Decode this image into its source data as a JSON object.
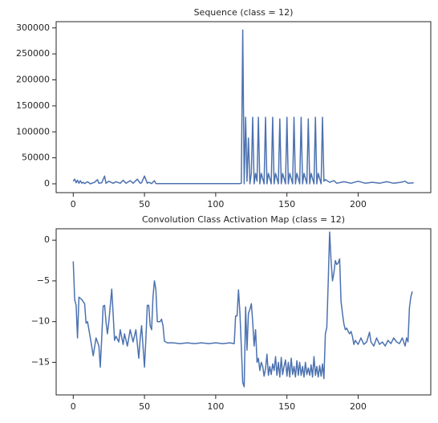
{
  "chart_data": [
    {
      "type": "line",
      "title": "Sequence (class = 12)",
      "x": [
        0,
        1,
        2,
        3,
        4,
        5,
        6,
        7,
        8,
        10,
        12,
        15,
        17,
        18,
        20,
        22,
        23,
        25,
        28,
        30,
        33,
        35,
        37,
        40,
        42,
        45,
        47,
        48,
        50,
        52,
        53,
        55,
        57,
        58,
        60,
        80,
        100,
        117,
        118,
        119,
        120,
        121,
        122,
        123,
        124,
        125,
        126,
        127,
        128,
        129,
        130,
        131,
        132,
        134,
        135,
        136,
        137,
        139,
        140,
        141,
        142,
        144,
        145,
        146,
        147,
        149,
        150,
        151,
        152,
        154,
        155,
        156,
        157,
        159,
        160,
        161,
        162,
        164,
        165,
        166,
        167,
        169,
        170,
        171,
        172,
        174,
        175,
        176,
        177,
        180,
        183,
        185,
        190,
        195,
        200,
        205,
        210,
        215,
        220,
        225,
        230,
        233,
        235,
        239
      ],
      "series": [
        {
          "color": "#4c72b0",
          "values": [
            5000,
            9000,
            2000,
            7000,
            1000,
            6000,
            1000,
            3000,
            500,
            4000,
            0,
            3000,
            8000,
            1000,
            2000,
            15000,
            1000,
            5000,
            1000,
            4000,
            1000,
            7000,
            1000,
            6000,
            1000,
            9000,
            1000,
            2000,
            15000,
            1000,
            3000,
            500,
            6000,
            500,
            500,
            500,
            500,
            500,
            1000,
            296000,
            0,
            128000,
            5000,
            88000,
            0,
            20000,
            128000,
            0,
            20000,
            5000,
            128000,
            0,
            20000,
            0,
            128000,
            0,
            20000,
            0,
            128000,
            0,
            20000,
            0,
            125000,
            0,
            20000,
            0,
            128000,
            0,
            20000,
            0,
            128000,
            0,
            20000,
            0,
            128000,
            0,
            20000,
            0,
            125000,
            0,
            20000,
            0,
            128000,
            0,
            20000,
            0,
            128000,
            5000,
            8000,
            3000,
            6000,
            1000,
            4000,
            1000,
            5000,
            1000,
            3000,
            1000,
            4000,
            1000,
            3000,
            5000,
            1000,
            2000
          ]
        }
      ],
      "xlim": [
        -12,
        251
      ],
      "xticks": [
        0,
        50,
        100,
        150,
        200
      ],
      "ylim": [
        -17000,
        312000
      ],
      "yticks": [
        0,
        50000,
        100000,
        150000,
        200000,
        250000,
        300000
      ]
    },
    {
      "type": "line",
      "title": "Convolution Class Activation Map (class = 12)",
      "x": [
        0,
        1,
        2,
        3,
        4,
        6,
        8,
        9,
        10,
        12,
        14,
        16,
        18,
        19,
        20,
        21,
        22,
        23,
        24,
        25,
        26,
        27,
        28,
        29,
        30,
        32,
        33,
        35,
        36,
        38,
        40,
        42,
        44,
        46,
        47,
        48,
        50,
        51,
        52,
        53,
        54,
        55,
        56,
        57,
        58,
        59,
        61,
        62,
        63,
        64,
        66,
        70,
        75,
        80,
        85,
        90,
        95,
        100,
        105,
        110,
        113,
        114,
        115,
        116,
        117,
        118,
        119,
        120,
        121,
        122,
        123,
        124,
        125,
        126,
        127,
        128,
        129,
        130,
        131,
        132,
        133,
        134,
        135,
        136,
        137,
        138,
        139,
        140,
        141,
        142,
        143,
        144,
        145,
        146,
        147,
        148,
        149,
        150,
        151,
        152,
        153,
        154,
        155,
        156,
        157,
        158,
        159,
        160,
        161,
        162,
        163,
        164,
        165,
        166,
        167,
        168,
        169,
        170,
        171,
        172,
        173,
        174,
        175,
        176,
        177,
        178,
        179,
        180,
        181,
        182,
        183,
        184,
        185,
        186,
        187,
        188,
        189,
        190,
        191,
        192,
        193,
        194,
        195,
        196,
        197,
        198,
        200,
        202,
        204,
        206,
        208,
        209,
        211,
        213,
        215,
        217,
        219,
        221,
        223,
        225,
        227,
        229,
        231,
        233,
        234,
        235,
        236,
        237,
        238
      ],
      "series": [
        {
          "color": "#4c72b0",
          "values": [
            -2.6,
            -7.3,
            -8,
            -12,
            -7,
            -7.3,
            -7.8,
            -10.2,
            -10,
            -12,
            -14.2,
            -12,
            -13,
            -15.6,
            -12,
            -8.1,
            -8,
            -10,
            -11.5,
            -10,
            -8,
            -6,
            -9,
            -12.3,
            -11.8,
            -12.5,
            -11,
            -12.8,
            -11.5,
            -13,
            -11,
            -12.5,
            -11,
            -14.5,
            -12,
            -10.5,
            -15.6,
            -12,
            -8,
            -8,
            -10.5,
            -11,
            -7,
            -5,
            -6,
            -10,
            -10,
            -9.7,
            -10.5,
            -12.4,
            -12.6,
            -12.6,
            -12.7,
            -12.6,
            -12.7,
            -12.6,
            -12.7,
            -12.6,
            -12.7,
            -12.6,
            -12.7,
            -9.3,
            -9.3,
            -6.1,
            -9,
            -13,
            -17.5,
            -18,
            -8.2,
            -13.5,
            -9,
            -8.5,
            -7.8,
            -10,
            -13,
            -11,
            -15,
            -14.5,
            -16,
            -15,
            -15.5,
            -16.7,
            -15.8,
            -14,
            -16.6,
            -15.5,
            -16.5,
            -15.2,
            -16,
            -14.3,
            -16.6,
            -15,
            -16.8,
            -14.4,
            -16.5,
            -15.5,
            -14.7,
            -16.7,
            -15,
            -16.8,
            -14.5,
            -16.5,
            -15.5,
            -16.8,
            -14.8,
            -16.6,
            -15,
            -16.6,
            -15.5,
            -16.8,
            -15,
            -16.5,
            -15.7,
            -16.6,
            -15.3,
            -16.8,
            -14.3,
            -16.6,
            -15.5,
            -16.8,
            -15.4,
            -16.7,
            -15.2,
            -17,
            -11.5,
            -10.7,
            -5,
            1,
            -2.5,
            -5,
            -4,
            -2.5,
            -3,
            -2.8,
            -2.3,
            -7.5,
            -9,
            -10.3,
            -11,
            -10.8,
            -11.2,
            -11.5,
            -11.2,
            -11.8,
            -12.8,
            -12.3,
            -12.8,
            -12,
            -12.8,
            -12.5,
            -11.3,
            -12.5,
            -13,
            -12,
            -12.8,
            -12.5,
            -13,
            -12.3,
            -12.7,
            -12,
            -12.5,
            -12.7,
            -12,
            -13,
            -12,
            -12.5,
            -8.3,
            -7,
            -6.3
          ]
        }
      ],
      "xlim": [
        -12,
        251
      ],
      "xticks": [
        0,
        50,
        100,
        150,
        200
      ],
      "ylim": [
        -19,
        1.4
      ],
      "yticks": [
        {
          "value": -15,
          "label": "−15"
        },
        {
          "value": -10,
          "label": "−10"
        },
        {
          "value": -5,
          "label": "−5"
        },
        0
      ]
    }
  ]
}
